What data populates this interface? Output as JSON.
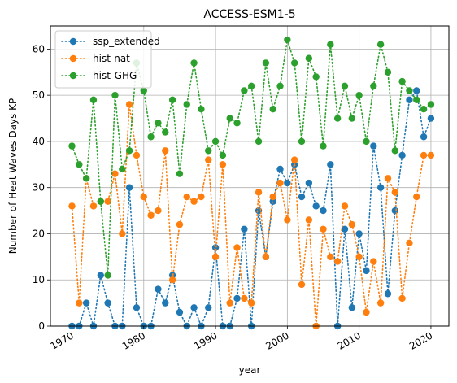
{
  "chart_data": {
    "type": "line",
    "title": "ACCESS-ESM1-5",
    "xlabel": "year",
    "ylabel": "Number of Heat Waves Days KP",
    "xlim": [
      1967,
      2022.5
    ],
    "ylim": [
      0,
      65
    ],
    "x_ticks": [
      1970,
      1980,
      1990,
      2000,
      2010,
      2020
    ],
    "y_ticks": [
      0,
      10,
      20,
      30,
      40,
      50,
      60
    ],
    "grid": true,
    "legend_position": "top-left",
    "x": [
      1970,
      1971,
      1972,
      1973,
      1974,
      1975,
      1976,
      1977,
      1978,
      1979,
      1980,
      1981,
      1982,
      1983,
      1984,
      1985,
      1986,
      1987,
      1988,
      1989,
      1990,
      1991,
      1992,
      1993,
      1994,
      1995,
      1996,
      1997,
      1998,
      1999,
      2000,
      2001,
      2002,
      2003,
      2004,
      2005,
      2006,
      2007,
      2008,
      2009,
      2010,
      2011,
      2012,
      2013,
      2014,
      2015,
      2016,
      2017,
      2018,
      2019,
      2020
    ],
    "series": [
      {
        "name": "ssp_extended",
        "color": "#1f77b4",
        "values": [
          0,
          0,
          5,
          0,
          11,
          5,
          0,
          0,
          30,
          4,
          0,
          0,
          8,
          5,
          11,
          3,
          0,
          4,
          0,
          4,
          17,
          0,
          0,
          6,
          21,
          0,
          25,
          15,
          27,
          34,
          31,
          35,
          28,
          31,
          26,
          25,
          35,
          0,
          21,
          4,
          20,
          12,
          39,
          30,
          7,
          25,
          37,
          49,
          51,
          41,
          45
        ]
      },
      {
        "name": "hist-nat",
        "color": "#ff7f0e",
        "values": [
          26,
          5,
          32,
          26,
          27,
          27,
          33,
          20,
          48,
          37,
          28,
          24,
          25,
          38,
          10,
          22,
          28,
          27,
          28,
          36,
          15,
          35,
          5,
          17,
          6,
          5,
          29,
          15,
          28,
          31,
          23,
          36,
          9,
          23,
          0,
          21,
          15,
          14,
          26,
          22,
          15,
          3,
          14,
          5,
          32,
          29,
          6,
          18,
          28,
          37,
          37
        ]
      },
      {
        "name": "hist-GHG",
        "color": "#2ca02c",
        "values": [
          39,
          35,
          32,
          49,
          27,
          11,
          50,
          34,
          38,
          57,
          51,
          41,
          44,
          42,
          49,
          33,
          48,
          57,
          47,
          38,
          40,
          37,
          45,
          44,
          51,
          52,
          40,
          57,
          47,
          52,
          62,
          57,
          40,
          58,
          54,
          39,
          61,
          45,
          52,
          45,
          50,
          40,
          52,
          61,
          55,
          38,
          53,
          51,
          49,
          47,
          48
        ]
      }
    ]
  }
}
